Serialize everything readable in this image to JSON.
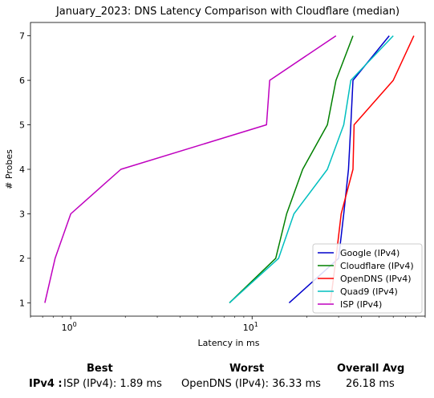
{
  "chart_data": {
    "type": "line",
    "title": "January_2023: DNS Latency Comparison with Cloudflare (median)",
    "xlabel": "Latency in ms",
    "ylabel": "# Probes",
    "x_scale": "log",
    "xlim": [
      0.6,
      90
    ],
    "ylim": [
      0.7,
      7.3
    ],
    "x_ticks": [
      {
        "value": 1,
        "label_base": "10",
        "label_exp": "0"
      },
      {
        "value": 10,
        "label_base": "10",
        "label_exp": "1"
      }
    ],
    "y_ticks": [
      1,
      2,
      3,
      4,
      5,
      6,
      7
    ],
    "grid": false,
    "legend_position": "lower-right",
    "series": [
      {
        "name": "Google (IPv4)",
        "color": "#0000cc",
        "points": [
          [
            16,
            1
          ],
          [
            30,
            2
          ],
          [
            32,
            3
          ],
          [
            34,
            4
          ],
          [
            35,
            5
          ],
          [
            36,
            6
          ],
          [
            57,
            7
          ]
        ]
      },
      {
        "name": "Cloudflare (IPv4)",
        "color": "#008000",
        "points": [
          [
            7.5,
            1
          ],
          [
            13.5,
            2
          ],
          [
            15.5,
            3
          ],
          [
            19,
            4
          ],
          [
            26,
            5
          ],
          [
            29,
            6
          ],
          [
            36,
            7
          ]
        ]
      },
      {
        "name": "OpenDNS (IPv4)",
        "color": "#ff0000",
        "points": [
          [
            27,
            1
          ],
          [
            29,
            2
          ],
          [
            31,
            3
          ],
          [
            36,
            4
          ],
          [
            36.5,
            5
          ],
          [
            60,
            6
          ],
          [
            78,
            7
          ]
        ]
      },
      {
        "name": "Quad9 (IPv4)",
        "color": "#00bfbf",
        "points": [
          [
            7.5,
            1
          ],
          [
            14,
            2
          ],
          [
            17,
            3
          ],
          [
            26,
            4
          ],
          [
            32,
            5
          ],
          [
            35,
            6
          ],
          [
            60,
            7
          ]
        ]
      },
      {
        "name": "ISP (IPv4)",
        "color": "#bf00bf",
        "points": [
          [
            0.72,
            1
          ],
          [
            0.82,
            2
          ],
          [
            1.0,
            3
          ],
          [
            1.89,
            4
          ],
          [
            12,
            5
          ],
          [
            12.5,
            6
          ],
          [
            29,
            7
          ]
        ]
      }
    ]
  },
  "summary": {
    "best_header": "Best",
    "worst_header": "Worst",
    "avg_header": "Overall Avg",
    "row_label": "IPv4 :",
    "best_value": "ISP (IPv4): 1.89 ms",
    "worst_value": "OpenDNS (IPv4): 36.33 ms",
    "avg_value": "26.18 ms"
  }
}
